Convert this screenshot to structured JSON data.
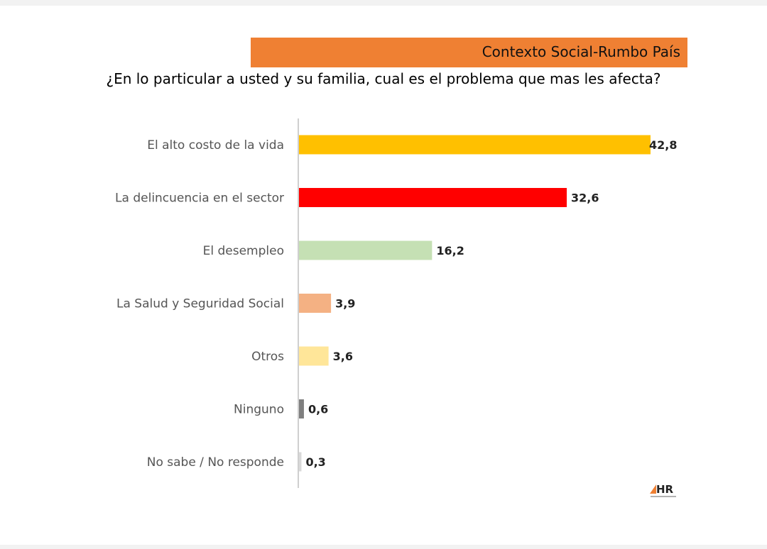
{
  "header": {
    "banner": "Contexto Social-Rumbo País",
    "question": "¿En lo particular a usted y su familia, cual es el problema que mas les afecta?"
  },
  "logo": {
    "text": "HR"
  },
  "chart_data": {
    "type": "bar",
    "orientation": "horizontal",
    "categories": [
      "El alto costo de la vida",
      "La delincuencia en el sector",
      "El desempleo",
      "La Salud y Seguridad Social",
      "Otros",
      "Ninguno",
      "No sabe / No responde"
    ],
    "values": [
      42.8,
      32.6,
      16.2,
      3.9,
      3.6,
      0.6,
      0.3
    ],
    "value_labels": [
      "42,8",
      "32,6",
      "16,2",
      "3,9",
      "3,6",
      "0,6",
      "0,3"
    ],
    "colors": [
      "#ffc000",
      "#ff0000",
      "#c5e0b4",
      "#f4b183",
      "#ffe699",
      "#7f7f7f",
      "#d9d9d9"
    ],
    "xlim": [
      0,
      42.8
    ],
    "grid": false,
    "legend": "none"
  }
}
